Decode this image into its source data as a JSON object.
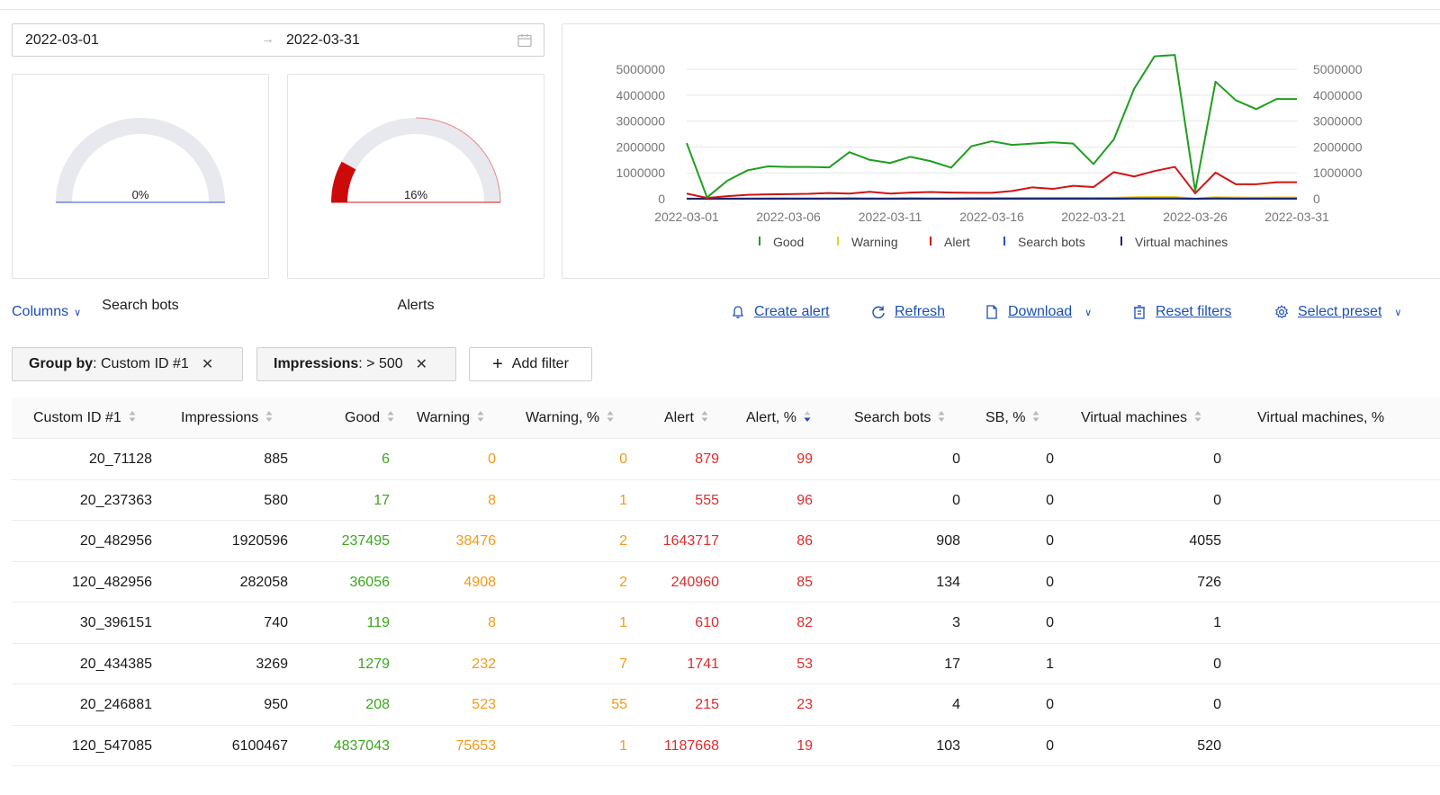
{
  "date_range": {
    "start": "2022-03-01",
    "end": "2022-03-31"
  },
  "gauges": [
    {
      "label": "Search bots",
      "percent_text": "0%",
      "value": 0
    },
    {
      "label": "Alerts",
      "percent_text": "16%",
      "value": 16
    }
  ],
  "chart_data": {
    "type": "line",
    "x": [
      "2022-03-01",
      "2022-03-02",
      "2022-03-03",
      "2022-03-04",
      "2022-03-05",
      "2022-03-06",
      "2022-03-07",
      "2022-03-08",
      "2022-03-09",
      "2022-03-10",
      "2022-03-11",
      "2022-03-12",
      "2022-03-13",
      "2022-03-14",
      "2022-03-15",
      "2022-03-16",
      "2022-03-17",
      "2022-03-18",
      "2022-03-19",
      "2022-03-20",
      "2022-03-21",
      "2022-03-22",
      "2022-03-23",
      "2022-03-24",
      "2022-03-25",
      "2022-03-26",
      "2022-03-27",
      "2022-03-28",
      "2022-03-29",
      "2022-03-30",
      "2022-03-31"
    ],
    "x_tick_labels": [
      "2022-03-01",
      "2022-03-06",
      "2022-03-11",
      "2022-03-16",
      "2022-03-21",
      "2022-03-26",
      "2022-03-31"
    ],
    "y_tick_labels": [
      "0",
      "1000000",
      "2000000",
      "3000000",
      "4000000",
      "5000000"
    ],
    "ylim": [
      0,
      5000000
    ],
    "legend_position": "bottom",
    "series": [
      {
        "name": "Good",
        "color": "#1f9e1f",
        "values": [
          2150000,
          50000,
          700000,
          1100000,
          1250000,
          1230000,
          1230000,
          1210000,
          1800000,
          1500000,
          1380000,
          1620000,
          1450000,
          1200000,
          2030000,
          2220000,
          2080000,
          2130000,
          2180000,
          2130000,
          1340000,
          2290000,
          4250000,
          5500000,
          5550000,
          300000,
          4520000,
          3800000,
          3460000,
          3850000,
          3850000
        ]
      },
      {
        "name": "Warning",
        "color": "#e8cf25",
        "values": [
          5000,
          2000,
          10000,
          15000,
          20000,
          20000,
          20000,
          20000,
          25000,
          20000,
          20000,
          25000,
          20000,
          20000,
          30000,
          30000,
          30000,
          30000,
          35000,
          35000,
          30000,
          40000,
          60000,
          70000,
          70000,
          10000,
          60000,
          50000,
          45000,
          50000,
          50000
        ]
      },
      {
        "name": "Alert",
        "color": "#d11414",
        "values": [
          200000,
          30000,
          100000,
          150000,
          170000,
          180000,
          190000,
          220000,
          200000,
          270000,
          200000,
          240000,
          260000,
          240000,
          230000,
          230000,
          300000,
          440000,
          380000,
          500000,
          450000,
          1030000,
          860000,
          1070000,
          1230000,
          210000,
          1010000,
          560000,
          560000,
          640000,
          640000
        ]
      },
      {
        "name": "Search bots",
        "color": "#2a4fd1",
        "values": [
          2000,
          1000,
          2000,
          2000,
          2000,
          2000,
          2000,
          2000,
          2000,
          2000,
          2000,
          2000,
          2000,
          2000,
          2000,
          2000,
          2000,
          2000,
          2000,
          2000,
          2000,
          2000,
          3000,
          3000,
          3000,
          1000,
          3000,
          2000,
          2000,
          2000,
          2000
        ]
      },
      {
        "name": "Virtual machines",
        "color": "#1a2666",
        "values": [
          5000,
          1000,
          5000,
          6000,
          6000,
          6000,
          6000,
          6000,
          7000,
          6000,
          6000,
          7000,
          6000,
          6000,
          8000,
          8000,
          8000,
          8000,
          8000,
          8000,
          7000,
          9000,
          12000,
          13000,
          13000,
          2000,
          12000,
          10000,
          9000,
          10000,
          10000
        ]
      }
    ]
  },
  "toolbar": {
    "columns": "Columns",
    "create_alert": "Create alert",
    "refresh": "Refresh",
    "download": "Download",
    "reset_filters": "Reset filters",
    "select_preset": "Select preset"
  },
  "filters": [
    {
      "key": "Group by",
      "value": "Custom ID #1"
    },
    {
      "key": "Impressions",
      "value": "> 500"
    }
  ],
  "add_filter": "Add filter",
  "columns": [
    "Custom ID #1",
    "Impressions",
    "Good",
    "Warning",
    "Warning, %",
    "Alert",
    "Alert, %",
    "Search bots",
    "SB, %",
    "Virtual machines",
    "Virtual machines, %"
  ],
  "rows": [
    [
      "20_71128",
      "885",
      "6",
      "0",
      "0",
      "879",
      "99",
      "0",
      "0",
      "0",
      ""
    ],
    [
      "20_237363",
      "580",
      "17",
      "8",
      "1",
      "555",
      "96",
      "0",
      "0",
      "0",
      ""
    ],
    [
      "20_482956",
      "1920596",
      "237495",
      "38476",
      "2",
      "1643717",
      "86",
      "908",
      "0",
      "4055",
      ""
    ],
    [
      "120_482956",
      "282058",
      "36056",
      "4908",
      "2",
      "240960",
      "85",
      "134",
      "0",
      "726",
      ""
    ],
    [
      "30_396151",
      "740",
      "119",
      "8",
      "1",
      "610",
      "82",
      "3",
      "0",
      "1",
      ""
    ],
    [
      "20_434385",
      "3269",
      "1279",
      "232",
      "7",
      "1741",
      "53",
      "17",
      "1",
      "0",
      ""
    ],
    [
      "20_246881",
      "950",
      "208",
      "523",
      "55",
      "215",
      "23",
      "4",
      "0",
      "0",
      ""
    ],
    [
      "120_547085",
      "6100467",
      "4837043",
      "75653",
      "1",
      "1187668",
      "19",
      "103",
      "0",
      "520",
      ""
    ]
  ]
}
